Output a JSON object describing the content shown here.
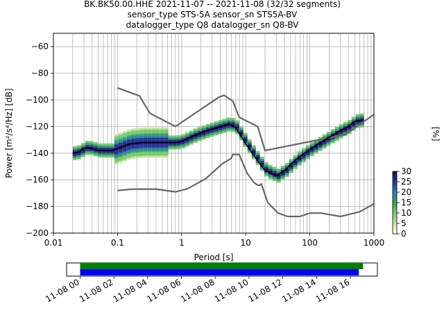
{
  "chart_data": {
    "type": "heatmap",
    "title_lines": [
      "BK.BK50.00.HHE   2021-11-07 -- 2021-11-08  (32/32 segments)",
      "sensor_type STS-5A sensor_sn STS5A-BV",
      "datalogger_type Q8 datalogger_sn Q8-BV"
    ],
    "xlabel": "Period [s]",
    "ylabel": "Power [m²/s⁴/Hz] [dB]",
    "x_scale": "log",
    "xlim": [
      0.01,
      1000
    ],
    "ylim": [
      -200,
      -50
    ],
    "x_ticks": [
      0.01,
      0.1,
      1,
      10,
      100,
      1000
    ],
    "x_tick_labels": [
      "0.01",
      "0.1",
      "1",
      "10",
      "100",
      "1000"
    ],
    "y_ticks": [
      -200,
      -180,
      -160,
      -140,
      -120,
      -100,
      -80,
      -60
    ],
    "y_tick_labels": [
      "−200",
      "−180",
      "−160",
      "−140",
      "−120",
      "−100",
      "−80",
      "−60"
    ],
    "grid": true,
    "colorbar": {
      "label": "[%]",
      "ticks": [
        0,
        5,
        10,
        15,
        20,
        25,
        30
      ],
      "tick_labels": [
        "0",
        "5",
        "10",
        "15",
        "20",
        "25",
        "30"
      ],
      "range": [
        0,
        30
      ],
      "colormap": [
        "#ffffe0",
        "#c2e699",
        "#78c679",
        "#31a354",
        "#2c7fb8",
        "#253494",
        "#2d004b"
      ]
    },
    "series": [
      {
        "name": "NHNM",
        "color": "#666666",
        "points": [
          [
            0.1,
            -91
          ],
          [
            0.22,
            -97
          ],
          [
            0.32,
            -110
          ],
          [
            0.8,
            -120
          ],
          [
            3.8,
            -98
          ],
          [
            4.6,
            -96.5
          ],
          [
            6.3,
            -101
          ],
          [
            7.9,
            -113
          ],
          [
            15.4,
            -120
          ],
          [
            20,
            -138
          ],
          [
            354.8,
            -126
          ],
          [
            1000,
            -111
          ]
        ]
      },
      {
        "name": "NLNM",
        "color": "#666666",
        "points": [
          [
            0.1,
            -168
          ],
          [
            0.17,
            -167
          ],
          [
            0.4,
            -167
          ],
          [
            0.8,
            -169
          ],
          [
            1.24,
            -166.7
          ],
          [
            2.4,
            -159
          ],
          [
            4.3,
            -148
          ],
          [
            5.9,
            -144
          ],
          [
            6.3,
            -141
          ],
          [
            7.9,
            -141
          ],
          [
            10.5,
            -155
          ],
          [
            13.4,
            -162
          ],
          [
            15.4,
            -164
          ],
          [
            16.6,
            -164
          ],
          [
            17.5,
            -163
          ],
          [
            22,
            -177
          ],
          [
            32,
            -185
          ],
          [
            45,
            -187.5
          ],
          [
            70,
            -187.5
          ],
          [
            100,
            -185
          ],
          [
            150,
            -185
          ],
          [
            300,
            -187.5
          ],
          [
            600,
            -184
          ],
          [
            1000,
            -178
          ]
        ]
      },
      {
        "name": "mode",
        "color": "#000000",
        "points": [
          [
            0.02,
            -140
          ],
          [
            0.025,
            -139
          ],
          [
            0.03,
            -136
          ],
          [
            0.035,
            -136
          ],
          [
            0.05,
            -138
          ],
          [
            0.08,
            -138
          ],
          [
            0.15,
            -133
          ],
          [
            0.25,
            -132
          ],
          [
            0.5,
            -132
          ],
          [
            0.8,
            -132
          ],
          [
            1.0,
            -131
          ],
          [
            1.5,
            -127
          ],
          [
            2.5,
            -123
          ],
          [
            4.0,
            -120
          ],
          [
            5.5,
            -118
          ],
          [
            7.0,
            -121
          ],
          [
            10,
            -133
          ],
          [
            15,
            -145
          ],
          [
            20,
            -153
          ],
          [
            30,
            -157
          ],
          [
            40,
            -153
          ],
          [
            60,
            -145
          ],
          [
            100,
            -137
          ],
          [
            200,
            -128
          ],
          [
            300,
            -123
          ],
          [
            400,
            -120
          ],
          [
            500,
            -116
          ],
          [
            700,
            -115
          ]
        ]
      }
    ],
    "availability": {
      "x_ticks": [
        "11-08 00",
        "11-08 02",
        "11-08 04",
        "11-08 06",
        "11-08 08",
        "11-08 10",
        "11-08 12",
        "11-08 14",
        "11-08 16"
      ],
      "bars": [
        {
          "name": "data",
          "color": "#008000",
          "start_hour": 0,
          "end_hour": 16.75
        },
        {
          "name": "used",
          "color": "#0000ff",
          "start_hour": 0,
          "end_hour": 16.5
        }
      ],
      "xlim_hours": [
        -0.8,
        17.6
      ]
    }
  }
}
